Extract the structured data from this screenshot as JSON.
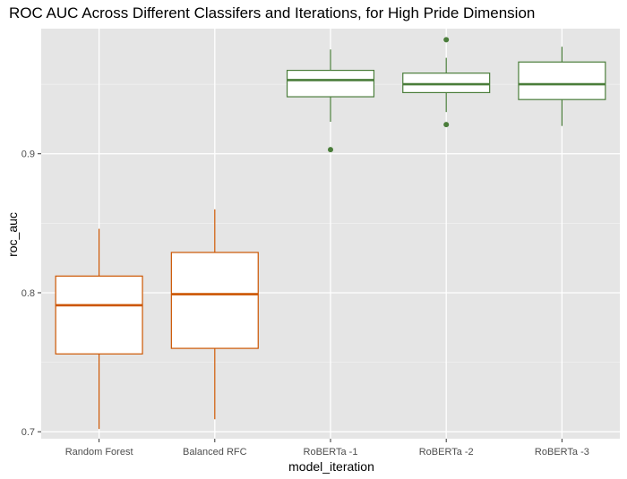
{
  "chart_data": {
    "type": "boxplot",
    "title": "ROC AUC Across Different Classifers and Iterations, for High Pride Dimension",
    "xlabel": "model_iteration",
    "ylabel": "roc_auc",
    "ylim": [
      0.695,
      0.99
    ],
    "yticks": [
      0.7,
      0.8,
      0.9
    ],
    "ytick_labels": [
      "0.7",
      "0.8",
      "0.9"
    ],
    "grid": true,
    "categories": [
      "Random Forest",
      "Balanced RFC",
      "RoBERTa -1",
      "RoBERTa -2",
      "RoBERTa -3"
    ],
    "boxes": [
      {
        "label": "Random Forest",
        "whisker_low": 0.702,
        "q1": 0.756,
        "median": 0.791,
        "q3": 0.812,
        "whisker_high": 0.846,
        "outliers": [],
        "color": "#cc5500"
      },
      {
        "label": "Balanced RFC",
        "whisker_low": 0.709,
        "q1": 0.76,
        "median": 0.799,
        "q3": 0.829,
        "whisker_high": 0.86,
        "outliers": [],
        "color": "#cc5500"
      },
      {
        "label": "RoBERTa -1",
        "whisker_low": 0.923,
        "q1": 0.941,
        "median": 0.953,
        "q3": 0.96,
        "whisker_high": 0.975,
        "outliers": [
          0.903
        ],
        "color": "#4a7d3a"
      },
      {
        "label": "RoBERTa -2",
        "whisker_low": 0.93,
        "q1": 0.944,
        "median": 0.95,
        "q3": 0.958,
        "whisker_high": 0.969,
        "outliers": [
          0.921,
          0.982
        ],
        "color": "#4a7d3a"
      },
      {
        "label": "RoBERTa -3",
        "whisker_low": 0.92,
        "q1": 0.939,
        "median": 0.95,
        "q3": 0.966,
        "whisker_high": 0.977,
        "outliers": [],
        "color": "#4a7d3a"
      }
    ]
  }
}
